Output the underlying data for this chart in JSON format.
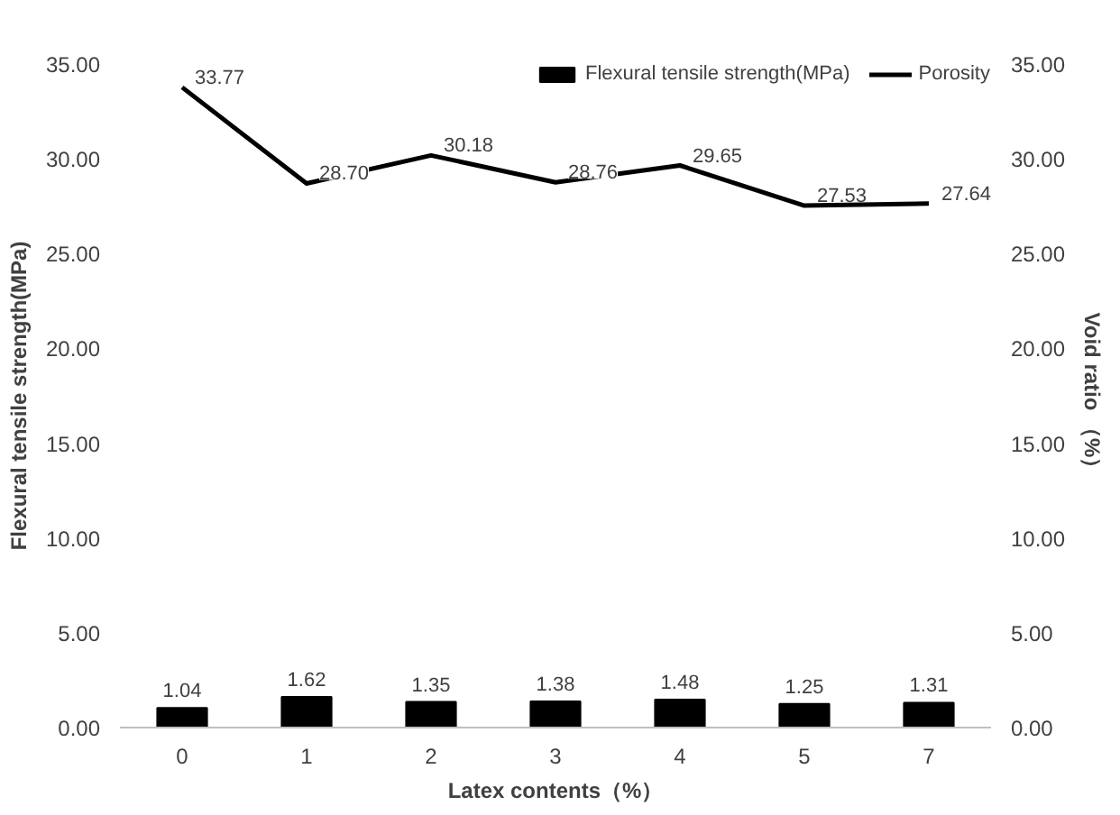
{
  "chart_data": {
    "type": "bar",
    "xlabel": "Latex contents（%）",
    "ylabel": "Flexural tensile strength(MPa)",
    "y2label": "Void ratio （%）",
    "categories": [
      "0",
      "1",
      "2",
      "3",
      "4",
      "5",
      "7"
    ],
    "series": [
      {
        "name": "Flexural tensile strength(MPa)",
        "color": "#000000",
        "values": [
          1.04,
          1.62,
          1.35,
          1.38,
          1.48,
          1.25,
          1.31
        ],
        "value_labels": [
          "1.04",
          "1.62",
          "1.35",
          "1.38",
          "1.48",
          "1.25",
          "1.31"
        ]
      },
      {
        "name": "Porosity",
        "type": "line",
        "axis": "y2",
        "color": "#000000",
        "values": [
          33.77,
          28.7,
          30.18,
          28.76,
          29.65,
          27.53,
          27.64
        ],
        "value_labels": [
          "33.77",
          "28.70",
          "30.18",
          "28.76",
          "29.65",
          "27.53",
          "27.64"
        ]
      }
    ],
    "ylim": [
      0,
      35
    ],
    "yticks": [
      {
        "value": 0,
        "label": "0.00"
      },
      {
        "value": 5,
        "label": "5.00"
      },
      {
        "value": 10,
        "label": "10.00"
      },
      {
        "value": 15,
        "label": "15.00"
      },
      {
        "value": 20,
        "label": "20.00"
      },
      {
        "value": 25,
        "label": "25.00"
      },
      {
        "value": 30,
        "label": "30.00"
      },
      {
        "value": 35,
        "label": "35.00"
      }
    ],
    "y2lim": [
      0,
      35
    ],
    "y2ticks": [
      {
        "value": 0,
        "label": "0.00"
      },
      {
        "value": 5,
        "label": "5.00"
      },
      {
        "value": 10,
        "label": "10.00"
      },
      {
        "value": 15,
        "label": "15.00"
      },
      {
        "value": 20,
        "label": "20.00"
      },
      {
        "value": 25,
        "label": "25.00"
      },
      {
        "value": 30,
        "label": "30.00"
      },
      {
        "value": 35,
        "label": "35.00"
      }
    ],
    "legend": "top right",
    "grid": false,
    "marker": "none",
    "line_style": "solid"
  }
}
